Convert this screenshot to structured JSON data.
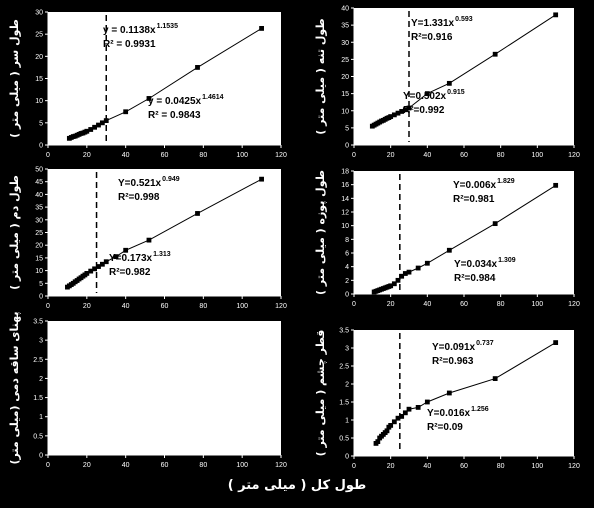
{
  "shared_xlabel": "طول کل ( میلی متر )",
  "colors": {
    "background": "#000000",
    "plot_area": "#ffffff",
    "marker": "#000000",
    "fit_line": "#000000"
  },
  "chart_data": [
    {
      "type": "scatter",
      "panel": "top-left",
      "ylabel": "طول سر ( میلی متر )",
      "xlim": [
        0,
        120
      ],
      "ylim": [
        0,
        30
      ],
      "xticks": [
        0,
        20,
        40,
        60,
        80,
        100,
        120
      ],
      "yticks": [
        0,
        5,
        10,
        15,
        20,
        25,
        30
      ],
      "breakpoint_x": 30,
      "x": [
        11,
        12,
        13,
        14,
        15,
        16,
        17,
        18,
        19,
        20,
        22,
        24,
        26,
        28,
        30,
        40,
        52,
        77,
        110
      ],
      "y": [
        1.5,
        1.7,
        1.9,
        2.0,
        2.2,
        2.4,
        2.6,
        2.7,
        2.9,
        3.1,
        3.5,
        4.0,
        4.5,
        5.0,
        5.5,
        7.5,
        10.5,
        17.5,
        26.3
      ],
      "fits": [
        {
          "base": "y = 0.1138x",
          "exp": "1.1535",
          "r2": "R² = 0.9931"
        },
        {
          "base": "y = 0.0425x",
          "exp": "1.4614",
          "r2": "R² = 0.9843"
        }
      ]
    },
    {
      "type": "scatter",
      "panel": "top-right",
      "ylabel": "طول تنه ( میلی متر )",
      "xlim": [
        0,
        120
      ],
      "ylim": [
        0,
        40
      ],
      "xticks": [
        0,
        20,
        40,
        60,
        80,
        100,
        120
      ],
      "yticks": [
        0,
        5,
        10,
        15,
        20,
        25,
        30,
        35,
        40
      ],
      "breakpoint_x": 30,
      "x": [
        10,
        11,
        12,
        13,
        14,
        15,
        16,
        17,
        18,
        19,
        20,
        22,
        24,
        26,
        28,
        30,
        40,
        52,
        77,
        110
      ],
      "y": [
        5.5,
        5.8,
        6.1,
        6.4,
        6.7,
        7.0,
        7.2,
        7.5,
        7.8,
        8.0,
        8.3,
        8.8,
        9.3,
        9.8,
        10.3,
        10.8,
        15.0,
        18.0,
        26.5,
        38.0
      ],
      "fits": [
        {
          "base": "Y=1.331x",
          "exp": "0.593",
          "r2": "R²=0.916"
        },
        {
          "base": "Y=0.502x",
          "exp": "0.915",
          "r2": "R²=0.992"
        }
      ]
    },
    {
      "type": "scatter",
      "panel": "middle-left",
      "ylabel": "طول دم ( میلی متر )",
      "xlim": [
        0,
        120
      ],
      "ylim": [
        0,
        50
      ],
      "xticks": [
        0,
        20,
        40,
        60,
        80,
        100,
        120
      ],
      "yticks": [
        0,
        5,
        10,
        15,
        20,
        25,
        30,
        35,
        40,
        45,
        50
      ],
      "breakpoint_x": 25,
      "x": [
        10,
        11,
        12,
        13,
        14,
        15,
        16,
        17,
        18,
        19,
        20,
        22,
        24,
        26,
        28,
        30,
        35,
        40,
        52,
        77,
        110
      ],
      "y": [
        3.5,
        4.0,
        4.5,
        5.0,
        5.6,
        6.1,
        6.7,
        7.2,
        7.8,
        8.3,
        8.9,
        9.8,
        10.7,
        11.6,
        12.5,
        13.5,
        15.5,
        18.0,
        22.0,
        32.5,
        46.0
      ],
      "fits": [
        {
          "base": "Y=0.521x",
          "exp": "0.949",
          "r2": "R²=0.998"
        },
        {
          "base": "Y=0.173x",
          "exp": "1.313",
          "r2": "R²=0.982"
        }
      ]
    },
    {
      "type": "scatter",
      "panel": "middle-right",
      "ylabel": "طول پوزه ( میلی متر )",
      "xlim": [
        0,
        120
      ],
      "ylim": [
        0,
        18
      ],
      "xticks": [
        0,
        20,
        40,
        60,
        80,
        100,
        120
      ],
      "yticks": [
        0,
        2,
        4,
        6,
        8,
        10,
        12,
        14,
        16,
        18
      ],
      "breakpoint_x": 25,
      "x": [
        11,
        12,
        13,
        14,
        15,
        16,
        17,
        18,
        19,
        20,
        22,
        24,
        26,
        28,
        30,
        35,
        40,
        52,
        77,
        110
      ],
      "y": [
        0.3,
        0.4,
        0.5,
        0.6,
        0.7,
        0.8,
        0.9,
        1.0,
        1.1,
        1.2,
        1.5,
        2.0,
        2.6,
        3.0,
        3.2,
        3.8,
        4.5,
        6.4,
        10.3,
        15.9
      ],
      "fits": [
        {
          "base": "Y=0.006x",
          "exp": "1.829",
          "r2": "R²=0.981"
        },
        {
          "base": "Y=0.034x",
          "exp": "1.309",
          "r2": "R²=0.984"
        }
      ]
    },
    {
      "type": "scatter",
      "panel": "bottom-left",
      "ylabel": "پهنای ساقه دمی (میلی متر)",
      "xlim": [
        0,
        120
      ],
      "ylim": [
        0,
        3.5
      ],
      "xticks": [
        0,
        20,
        40,
        60,
        80,
        100,
        120
      ],
      "yticks": [
        0,
        0.5,
        1,
        1.5,
        2,
        2.5,
        3,
        3.5
      ],
      "breakpoint_x": null,
      "x": [],
      "y": [],
      "fits": []
    },
    {
      "type": "scatter",
      "panel": "bottom-right",
      "ylabel": "قطر چشم ( میلی متر )",
      "xlim": [
        0,
        120
      ],
      "ylim": [
        0,
        3.5
      ],
      "xticks": [
        0,
        20,
        40,
        60,
        80,
        100,
        120
      ],
      "yticks": [
        0,
        0.5,
        1,
        1.5,
        2,
        2.5,
        3,
        3.5
      ],
      "breakpoint_x": 25,
      "x": [
        12,
        13,
        14,
        15,
        16,
        17,
        18,
        19,
        20,
        22,
        24,
        26,
        28,
        30,
        35,
        40,
        52,
        77,
        110
      ],
      "y": [
        0.35,
        0.4,
        0.5,
        0.55,
        0.6,
        0.65,
        0.7,
        0.8,
        0.85,
        0.95,
        1.05,
        1.1,
        1.2,
        1.3,
        1.35,
        1.5,
        1.75,
        2.15,
        3.15
      ],
      "fits": [
        {
          "base": "Y=0.091x",
          "exp": "0.737",
          "r2": "R²=0.963"
        },
        {
          "base": "Y=0.016x",
          "exp": "1.256",
          "r2": "R²=0.09"
        }
      ]
    }
  ]
}
